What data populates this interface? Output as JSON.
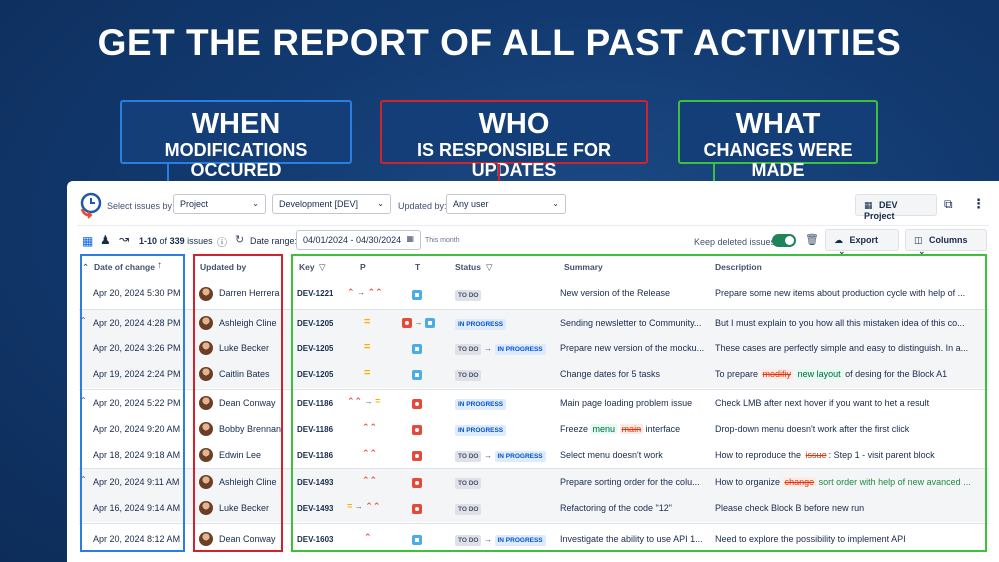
{
  "headline": "GET THE REPORT OF ALL PAST ACTIVITIES",
  "callouts": {
    "when": {
      "big": "WHEN",
      "small": "MODIFICATIONS OCCURED"
    },
    "who": {
      "big": "WHO",
      "small": "IS RESPONSIBLE FOR UPDATES"
    },
    "what": {
      "big": "WHAT",
      "small": "CHANGES WERE MADE"
    }
  },
  "toolbar": {
    "select_issues_by_label": "Select issues by",
    "scope_select": "Project",
    "project_select": "Development [DEV]",
    "updated_by_label": "Updated by:",
    "user_select": "Any user",
    "dev_project_button": "DEV Project"
  },
  "toolbar2": {
    "range_prefix": "1-10",
    "range_of": "of",
    "total": "339",
    "issues_label": "issues",
    "date_range_label": "Date range:",
    "date_range_value": "04/01/2024 - 04/30/2024",
    "this_month": "This month",
    "keep_deleted_label": "Keep deleted issues",
    "export_label": "Export",
    "columns_label": "Columns"
  },
  "columns": {
    "date": "Date of change",
    "updated_by": "Updated by",
    "key": "Key",
    "p": "P",
    "t": "T",
    "status": "Status",
    "summary": "Summary",
    "description": "Description"
  },
  "rows": [
    {
      "date": "Apr 20, 2024 5:30 PM",
      "user": "Darren Herrera",
      "key": "DEV-1221",
      "status_from": "TO DO",
      "status_to": "",
      "summary": "New version of the Release",
      "description": "Prepare some new items about production cycle with help of ..."
    },
    {
      "date": "Apr 20, 2024 4:28 PM",
      "user": "Ashleigh Cline",
      "key": "DEV-1205",
      "status_from": "IN PROGRESS",
      "status_to": "",
      "summary": "Sending newsletter to Community...",
      "description": "But I must explain to you how all this mistaken idea of this co..."
    },
    {
      "date": "Apr 20, 2024 3:26 PM",
      "user": "Luke Becker",
      "key": "DEV-1205",
      "status_from": "TO DO",
      "status_to": "IN PROGRESS",
      "summary": "Prepare new version of the mocku...",
      "description": "These cases are perfectly simple and easy to distinguish. In a..."
    },
    {
      "date": "Apr 19, 2024 2:24 PM",
      "user": "Caitlin Bates",
      "key": "DEV-1205",
      "status_from": "TO DO",
      "status_to": "",
      "summary": "Change dates for 5 tasks",
      "description_parts": [
        "To prepare",
        "modifiy",
        "new layout",
        "of desing for the Block A1"
      ]
    },
    {
      "date": "Apr 20, 2024 5:22 PM",
      "user": "Dean Conway",
      "key": "DEV-1186",
      "status_from": "IN PROGRESS",
      "status_to": "",
      "summary": "Main page loading problem issue",
      "description": "Check LMB after next hover if you want to het a result"
    },
    {
      "date": "Apr 20, 2024 9:20 AM",
      "user": "Bobby Brennan",
      "key": "DEV-1186",
      "status_from": "IN PROGRESS",
      "status_to": "",
      "summary_parts": [
        "Freeze",
        "menu",
        "main",
        "interface"
      ],
      "description": "Drop-down menu doesn't work after the first click"
    },
    {
      "date": "Apr 18, 2024 9:18 AM",
      "user": "Edwin Lee",
      "key": "DEV-1186",
      "status_from": "TO DO",
      "status_to": "IN PROGRESS",
      "summary": "Select menu doesn't work",
      "description_parts": [
        "How to reproduce the ",
        "issue",
        ": Step 1 - visit parent block"
      ]
    },
    {
      "date": "Apr 20, 2024 9:11 AM",
      "user": "Ashleigh Cline",
      "key": "DEV-1493",
      "status_from": "TO DO",
      "status_to": "",
      "summary": "Prepare sorting order for the colu...",
      "description_parts": [
        "How to organize",
        "change",
        "sort order with help of new avanced ..."
      ]
    },
    {
      "date": "Apr 16, 2024 9:14 AM",
      "user": "Luke Becker",
      "key": "DEV-1493",
      "status_from": "TO DO",
      "status_to": "",
      "summary": "Refactoring of the code \"12\"",
      "description": "Please check Block B before new run"
    },
    {
      "date": "Apr 20, 2024 8:12 AM",
      "user": "Dean Conway",
      "key": "DEV-1603",
      "status_from": "TO DO",
      "status_to": "IN PROGRESS",
      "summary": "Investigate the ability to use API 1...",
      "description": "Need to explore the possibility to implement API"
    }
  ],
  "colors": {
    "when": "#2a7de1",
    "who": "#d2222d",
    "what": "#3dc13c",
    "background": "#123a70"
  }
}
